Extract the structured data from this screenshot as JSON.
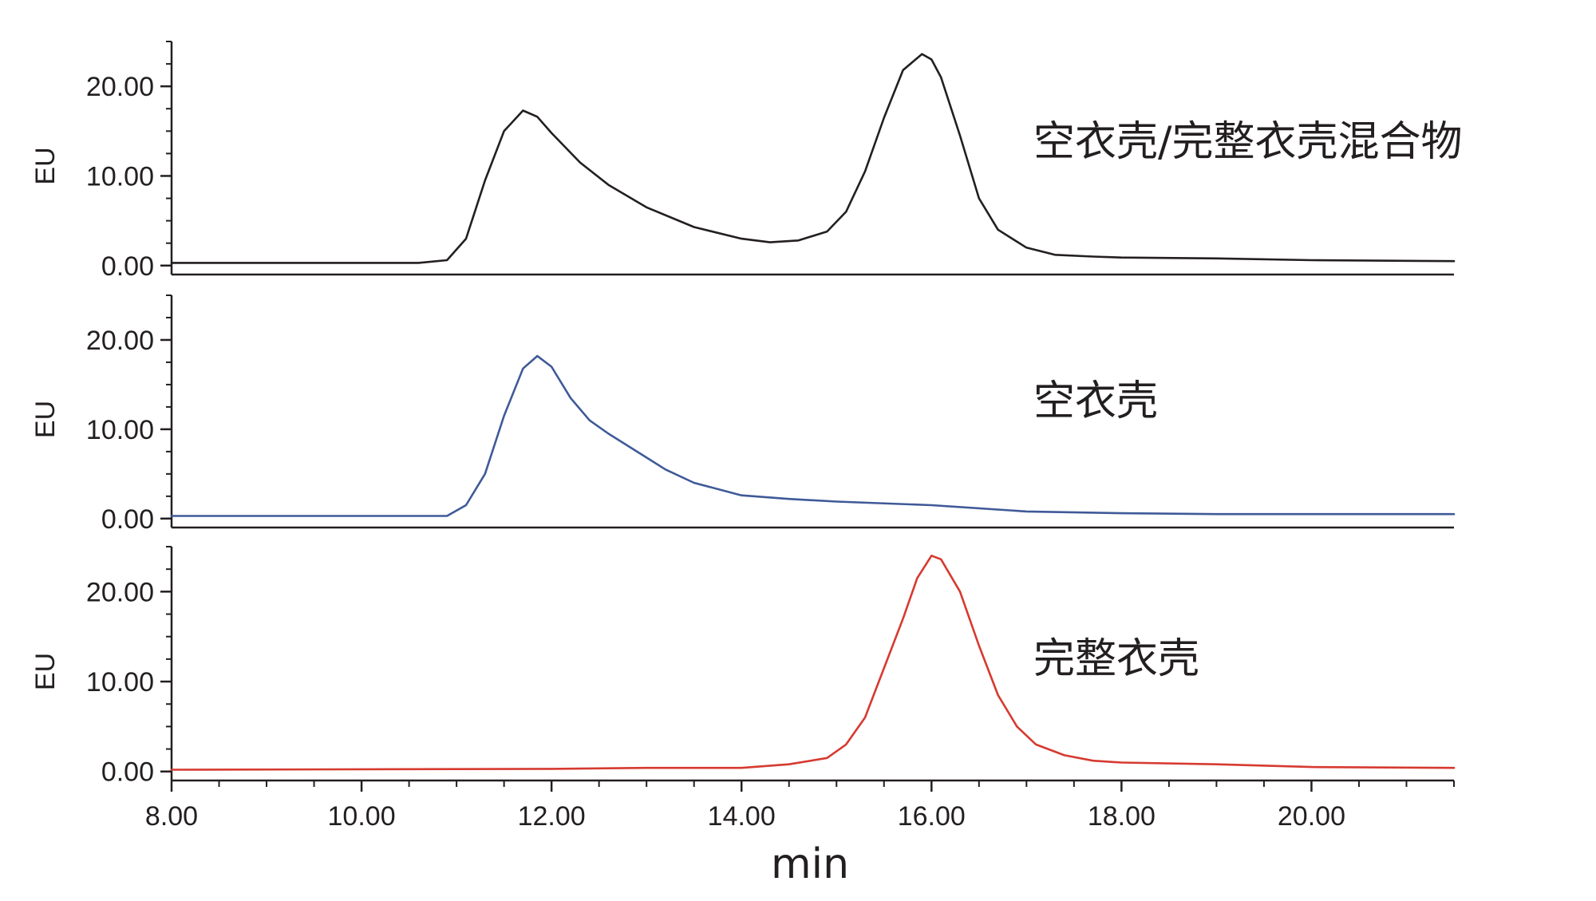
{
  "chart_data": [
    {
      "type": "line",
      "annotation": "空衣壳/完整衣壳混合物",
      "ylabel": "EU",
      "xlim": [
        8.0,
        21.5
      ],
      "ylim": [
        -1.0,
        25.0
      ],
      "yticks": [
        "0.00",
        "10.00",
        "20.00"
      ],
      "color": "#231f20",
      "series": [
        {
          "x": [
            8.0,
            10.6,
            10.9,
            11.1,
            11.3,
            11.5,
            11.7,
            11.85,
            12.0,
            12.3,
            12.6,
            13.0,
            13.5,
            14.0,
            14.3,
            14.6,
            14.9,
            15.1,
            15.3,
            15.5,
            15.7,
            15.9,
            16.0,
            16.1,
            16.3,
            16.5,
            16.7,
            17.0,
            17.3,
            17.7,
            18.0,
            19.0,
            20.0,
            21.5
          ],
          "y": [
            0.3,
            0.3,
            0.6,
            3.0,
            9.5,
            15.0,
            17.3,
            16.6,
            14.8,
            11.5,
            9.0,
            6.5,
            4.3,
            3.0,
            2.6,
            2.8,
            3.8,
            6.0,
            10.5,
            16.5,
            21.8,
            23.6,
            23.0,
            21.0,
            14.5,
            7.5,
            4.0,
            2.0,
            1.2,
            1.0,
            0.9,
            0.8,
            0.6,
            0.5
          ]
        }
      ]
    },
    {
      "type": "line",
      "annotation": "空衣壳",
      "ylabel": "EU",
      "xlim": [
        8.0,
        21.5
      ],
      "ylim": [
        -1.0,
        25.0
      ],
      "yticks": [
        "0.00",
        "10.00",
        "20.00"
      ],
      "color": "#3f5a98",
      "series": [
        {
          "x": [
            8.0,
            10.9,
            11.1,
            11.3,
            11.5,
            11.7,
            11.85,
            12.0,
            12.2,
            12.4,
            12.6,
            12.9,
            13.2,
            13.5,
            14.0,
            14.5,
            15.0,
            16.0,
            17.0,
            18.0,
            19.0,
            20.0,
            21.5
          ],
          "y": [
            0.3,
            0.3,
            1.5,
            5.0,
            11.5,
            16.8,
            18.2,
            17.0,
            13.5,
            11.0,
            9.5,
            7.5,
            5.5,
            4.0,
            2.6,
            2.2,
            1.9,
            1.5,
            0.8,
            0.6,
            0.5,
            0.5,
            0.5
          ]
        }
      ]
    },
    {
      "type": "line",
      "annotation": "完整衣壳",
      "ylabel": "EU",
      "xlim": [
        8.0,
        21.5
      ],
      "ylim": [
        -1.0,
        25.0
      ],
      "yticks": [
        "0.00",
        "10.00",
        "20.00"
      ],
      "color": "#d63a30",
      "series": [
        {
          "x": [
            8.0,
            12.0,
            13.0,
            14.0,
            14.5,
            14.9,
            15.1,
            15.3,
            15.5,
            15.7,
            15.85,
            16.0,
            16.1,
            16.3,
            16.5,
            16.7,
            16.9,
            17.1,
            17.4,
            17.7,
            18.0,
            19.0,
            20.0,
            21.5
          ],
          "y": [
            0.2,
            0.3,
            0.4,
            0.4,
            0.8,
            1.5,
            3.0,
            6.0,
            11.5,
            17.0,
            21.5,
            24.0,
            23.6,
            20.0,
            14.0,
            8.5,
            5.0,
            3.0,
            1.8,
            1.2,
            1.0,
            0.8,
            0.5,
            0.4
          ]
        }
      ]
    }
  ],
  "x_axis": {
    "label": "min",
    "ticks": [
      "8.00",
      "10.00",
      "12.00",
      "14.00",
      "16.00",
      "18.00",
      "20.00"
    ]
  }
}
